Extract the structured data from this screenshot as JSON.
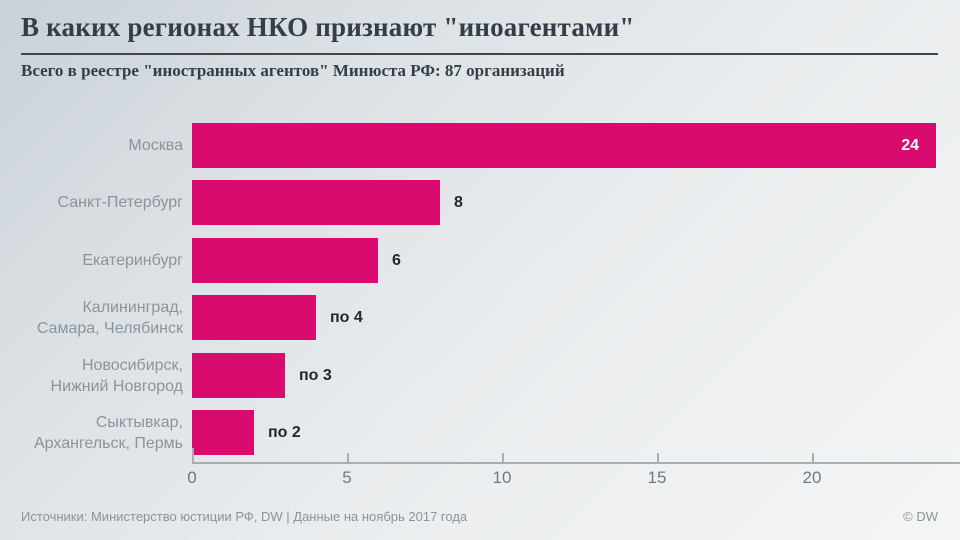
{
  "header": {
    "title": "В каких регионах НКО признают \"иноагентами\"",
    "subtitle": "Всего в реестре \"иностранных агентов\" Минюста РФ: 87 организаций"
  },
  "chart_data": {
    "type": "bar",
    "orientation": "horizontal",
    "title": "В каких регионах НКО признают \"иноагентами\"",
    "subtitle": "Всего в реестре \"иностранных агентов\" Минюста РФ: 87 организаций",
    "categories": [
      "Москва",
      "Санкт-Петербург",
      "Екатеринбург",
      "Калининград,\nСамара, Челябинск",
      "Новосибирск,\nНижний Новгород",
      "Сыктывкар,\nАрхангельск, Пермь"
    ],
    "values": [
      24,
      8,
      6,
      4,
      3,
      2
    ],
    "value_labels": [
      "24",
      "8",
      "6",
      "по 4",
      "по 3",
      "по 2"
    ],
    "value_label_positions": [
      "inside",
      "outside",
      "outside",
      "outside",
      "outside",
      "outside"
    ],
    "xticks": [
      0,
      5,
      10,
      15,
      20
    ],
    "xlim": [
      0,
      24.8
    ],
    "xlabel": "",
    "ylabel": "",
    "grid": false,
    "legend": false,
    "bar_color": "#d90b6f"
  },
  "footer": {
    "source": "Источники: Министерство юстиции РФ, DW | Данные на ноябрь 2017 года",
    "copyright": "© DW"
  },
  "colors": {
    "accent_bar": "#d90b6f",
    "title_text": "#333e48",
    "category_text": "#8a949d",
    "value_text": "#1e2830",
    "axis": "#a7aeb4",
    "footer_text": "#8b939b"
  }
}
